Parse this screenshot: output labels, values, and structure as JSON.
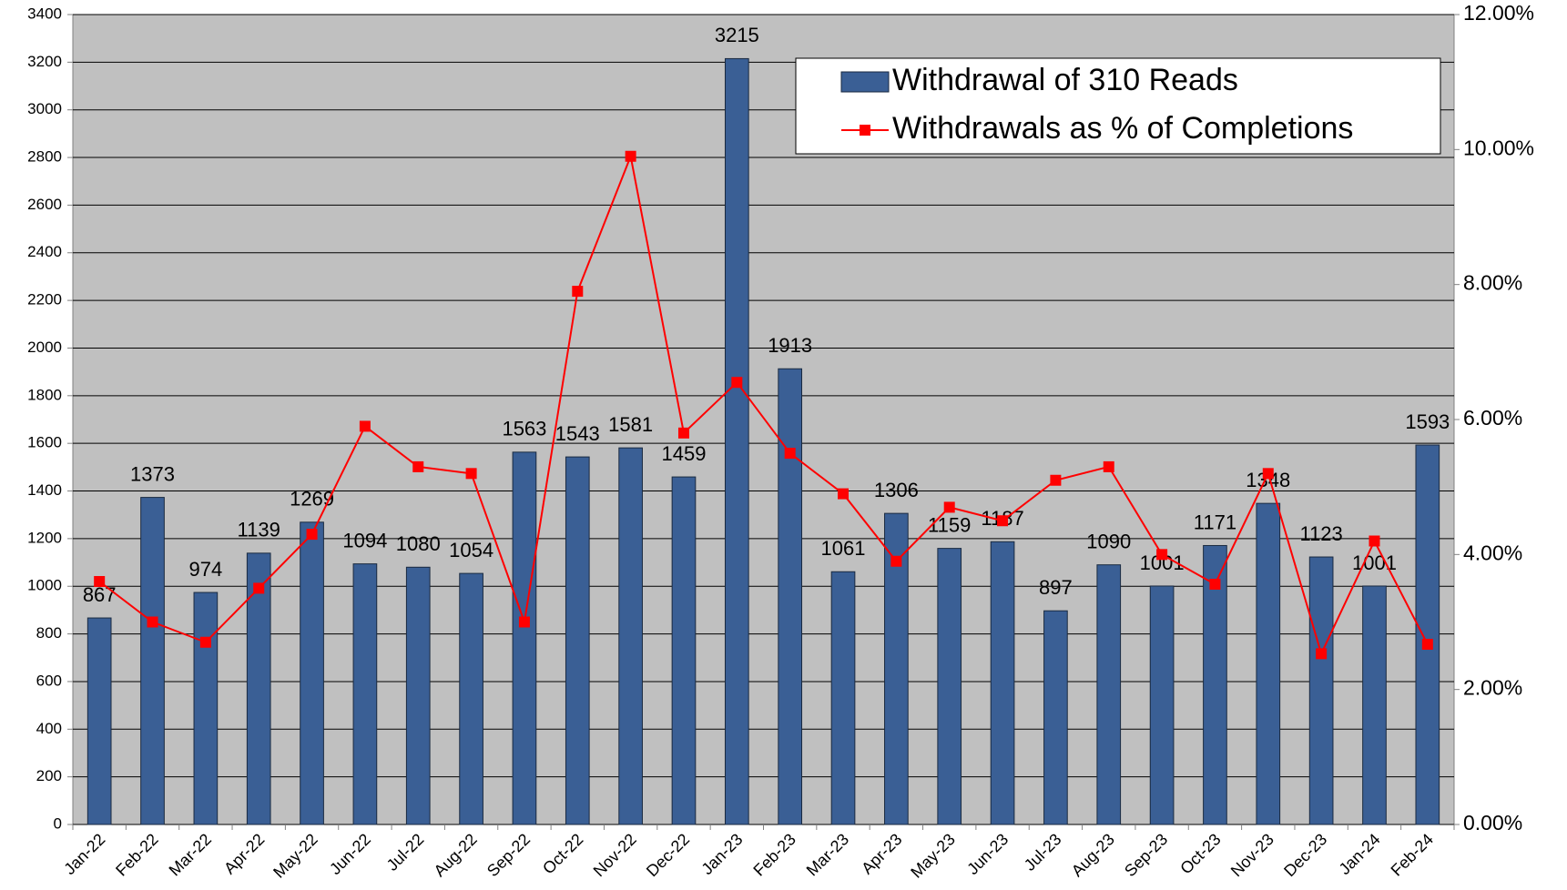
{
  "chart_data": {
    "type": "bar_line",
    "categories": [
      "Jan-22",
      "Feb-22",
      "Mar-22",
      "Apr-22",
      "May-22",
      "Jun-22",
      "Jul-22",
      "Aug-22",
      "Sep-22",
      "Oct-22",
      "Nov-22",
      "Dec-22",
      "Jan-23",
      "Feb-23",
      "Mar-23",
      "Apr-23",
      "May-23",
      "Jun-23",
      "Jul-23",
      "Aug-23",
      "Sep-23",
      "Oct-23",
      "Nov-23",
      "Dec-23",
      "Jan-24",
      "Feb-24"
    ],
    "series": [
      {
        "name": "Withdrawal of 310 Reads",
        "type": "bar",
        "color": "#3a5f95",
        "values": [
          867,
          1373,
          974,
          1139,
          1269,
          1094,
          1080,
          1054,
          1563,
          1543,
          1581,
          1459,
          3215,
          1913,
          1061,
          1306,
          1159,
          1187,
          897,
          1090,
          1001,
          1171,
          1348,
          1123,
          1001,
          1593
        ]
      },
      {
        "name": "Withdrawals as % of Completions",
        "type": "line",
        "axis": "y2",
        "color": "#ff0000",
        "values": [
          3.6,
          3.0,
          2.7,
          3.5,
          4.3,
          5.9,
          5.3,
          5.2,
          3.0,
          7.9,
          9.9,
          5.8,
          6.55,
          5.5,
          4.9,
          3.9,
          4.7,
          4.5,
          5.1,
          5.3,
          4.0,
          3.56,
          5.2,
          2.53,
          4.2,
          2.67
        ]
      }
    ],
    "ylim": [
      0,
      3400
    ],
    "yticks": [
      0,
      200,
      400,
      600,
      800,
      1000,
      1200,
      1400,
      1600,
      1800,
      2000,
      2200,
      2400,
      2600,
      2800,
      3000,
      3200,
      3400
    ],
    "y2lim": [
      0,
      12
    ],
    "y2ticks": [
      {
        "value": 0,
        "label": "0.00%"
      },
      {
        "value": 2,
        "label": "2.00%"
      },
      {
        "value": 4,
        "label": "4.00%"
      },
      {
        "value": 6,
        "label": "6.00%"
      },
      {
        "value": 8,
        "label": "8.00%"
      },
      {
        "value": 10,
        "label": "10.00%"
      },
      {
        "value": 12,
        "label": "12.00%"
      }
    ],
    "grid": true,
    "legend": "upper right"
  }
}
